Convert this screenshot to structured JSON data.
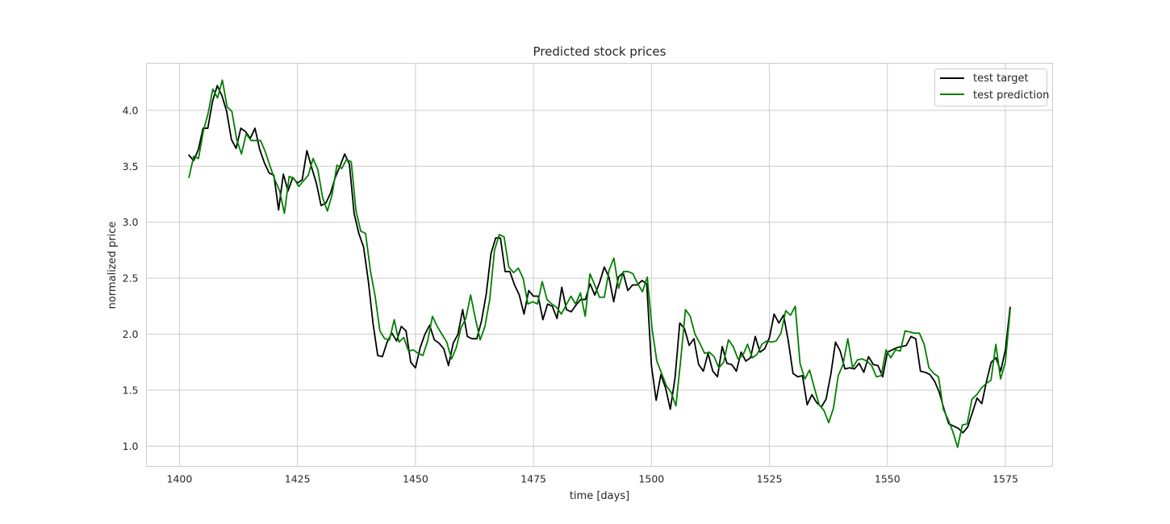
{
  "chart_data": {
    "type": "line",
    "title": "Predicted stock prices",
    "xlabel": "time [days]",
    "ylabel": "normalized price",
    "xlim": [
      1393,
      1585
    ],
    "ylim": [
      0.82,
      4.42
    ],
    "x_ticks": [
      1400,
      1425,
      1450,
      1475,
      1500,
      1525,
      1550,
      1575
    ],
    "y_ticks": [
      1.0,
      1.5,
      2.0,
      2.5,
      3.0,
      3.5,
      4.0
    ],
    "y_tick_labels": [
      "1.0",
      "1.5",
      "2.0",
      "2.5",
      "3.0",
      "3.5",
      "4.0"
    ],
    "grid": true,
    "legend_position": "upper-right",
    "x_start": 1402,
    "x_end": 1576,
    "series": [
      {
        "name": "test target",
        "color": "#000000",
        "values": [
          3.6,
          3.55,
          3.65,
          3.84,
          3.84,
          4.08,
          4.22,
          4.13,
          3.99,
          3.74,
          3.66,
          3.84,
          3.81,
          3.75,
          3.84,
          3.65,
          3.53,
          3.44,
          3.42,
          3.11,
          3.43,
          3.28,
          3.4,
          3.35,
          3.38,
          3.64,
          3.49,
          3.35,
          3.15,
          3.17,
          3.26,
          3.4,
          3.5,
          3.61,
          3.52,
          3.08,
          2.9,
          2.78,
          2.48,
          2.1,
          1.81,
          1.8,
          1.93,
          2.01,
          1.94,
          2.07,
          2.03,
          1.75,
          1.7,
          1.88,
          2.0,
          2.08,
          1.95,
          1.92,
          1.87,
          1.72,
          1.92,
          2.0,
          2.22,
          1.98,
          1.96,
          1.96,
          2.12,
          2.36,
          2.72,
          2.86,
          2.86,
          2.56,
          2.56,
          2.44,
          2.35,
          2.18,
          2.39,
          2.34,
          2.34,
          2.13,
          2.27,
          2.25,
          2.14,
          2.42,
          2.22,
          2.2,
          2.26,
          2.31,
          2.31,
          2.45,
          2.35,
          2.46,
          2.6,
          2.51,
          2.29,
          2.51,
          2.55,
          2.39,
          2.44,
          2.44,
          2.48,
          2.45,
          1.72,
          1.41,
          1.64,
          1.52,
          1.33,
          1.61,
          2.1,
          2.05,
          1.9,
          1.96,
          1.73,
          1.67,
          1.83,
          1.67,
          1.62,
          1.89,
          1.74,
          1.73,
          1.67,
          1.84,
          1.76,
          1.79,
          1.98,
          1.84,
          1.87,
          1.97,
          2.18,
          2.1,
          2.17,
          1.94,
          1.65,
          1.62,
          1.63,
          1.37,
          1.46,
          1.39,
          1.35,
          1.42,
          1.64,
          1.93,
          1.85,
          1.69,
          1.7,
          1.69,
          1.74,
          1.66,
          1.8,
          1.73,
          1.72,
          1.62,
          1.84,
          1.86,
          1.88,
          1.89,
          1.9,
          1.98,
          1.96,
          1.67,
          1.66,
          1.64,
          1.58,
          1.48,
          1.33,
          1.2,
          1.18,
          1.16,
          1.12,
          1.17,
          1.3,
          1.43,
          1.38,
          1.58,
          1.75,
          1.79,
          1.67,
          1.86,
          2.24
        ]
      },
      {
        "name": "test prediction",
        "color": "#008000",
        "values": [
          3.4,
          3.59,
          3.57,
          3.81,
          3.97,
          4.19,
          4.11,
          4.27,
          4.03,
          3.99,
          3.74,
          3.61,
          3.79,
          3.73,
          3.73,
          3.73,
          3.63,
          3.5,
          3.38,
          3.28,
          3.08,
          3.41,
          3.39,
          3.32,
          3.37,
          3.42,
          3.57,
          3.47,
          3.22,
          3.1,
          3.25,
          3.51,
          3.48,
          3.56,
          3.54,
          3.1,
          2.92,
          2.9,
          2.57,
          2.34,
          2.03,
          1.96,
          1.95,
          2.13,
          1.93,
          1.97,
          1.85,
          1.86,
          1.83,
          1.81,
          1.94,
          2.16,
          2.07,
          2.0,
          1.93,
          1.78,
          1.88,
          2.06,
          2.14,
          2.35,
          2.14,
          1.95,
          2.07,
          2.31,
          2.75,
          2.89,
          2.87,
          2.6,
          2.55,
          2.59,
          2.5,
          2.27,
          2.29,
          2.27,
          2.47,
          2.31,
          2.27,
          2.24,
          2.18,
          2.26,
          2.34,
          2.27,
          2.37,
          2.16,
          2.54,
          2.44,
          2.33,
          2.33,
          2.57,
          2.68,
          2.41,
          2.56,
          2.56,
          2.54,
          2.45,
          2.38,
          2.51,
          2.05,
          1.76,
          1.65,
          1.54,
          1.48,
          1.36,
          1.77,
          2.22,
          2.16,
          2.0,
          1.92,
          1.83,
          1.84,
          1.8,
          1.7,
          1.75,
          1.95,
          1.89,
          1.78,
          1.81,
          1.91,
          1.79,
          1.82,
          1.91,
          1.94,
          1.93,
          1.94,
          2.01,
          2.21,
          2.17,
          2.25,
          1.74,
          1.6,
          1.68,
          1.52,
          1.37,
          1.32,
          1.21,
          1.34,
          1.63,
          1.73,
          1.96,
          1.7,
          1.77,
          1.78,
          1.76,
          1.72,
          1.62,
          1.63,
          1.86,
          1.79,
          1.86,
          1.85,
          2.03,
          2.02,
          2.01,
          2.01,
          1.91,
          1.7,
          1.65,
          1.62,
          1.33,
          1.24,
          1.13,
          0.99,
          1.19,
          1.2,
          1.42,
          1.46,
          1.52,
          1.56,
          1.59,
          1.91,
          1.6,
          1.75,
          2.21
        ]
      }
    ]
  }
}
